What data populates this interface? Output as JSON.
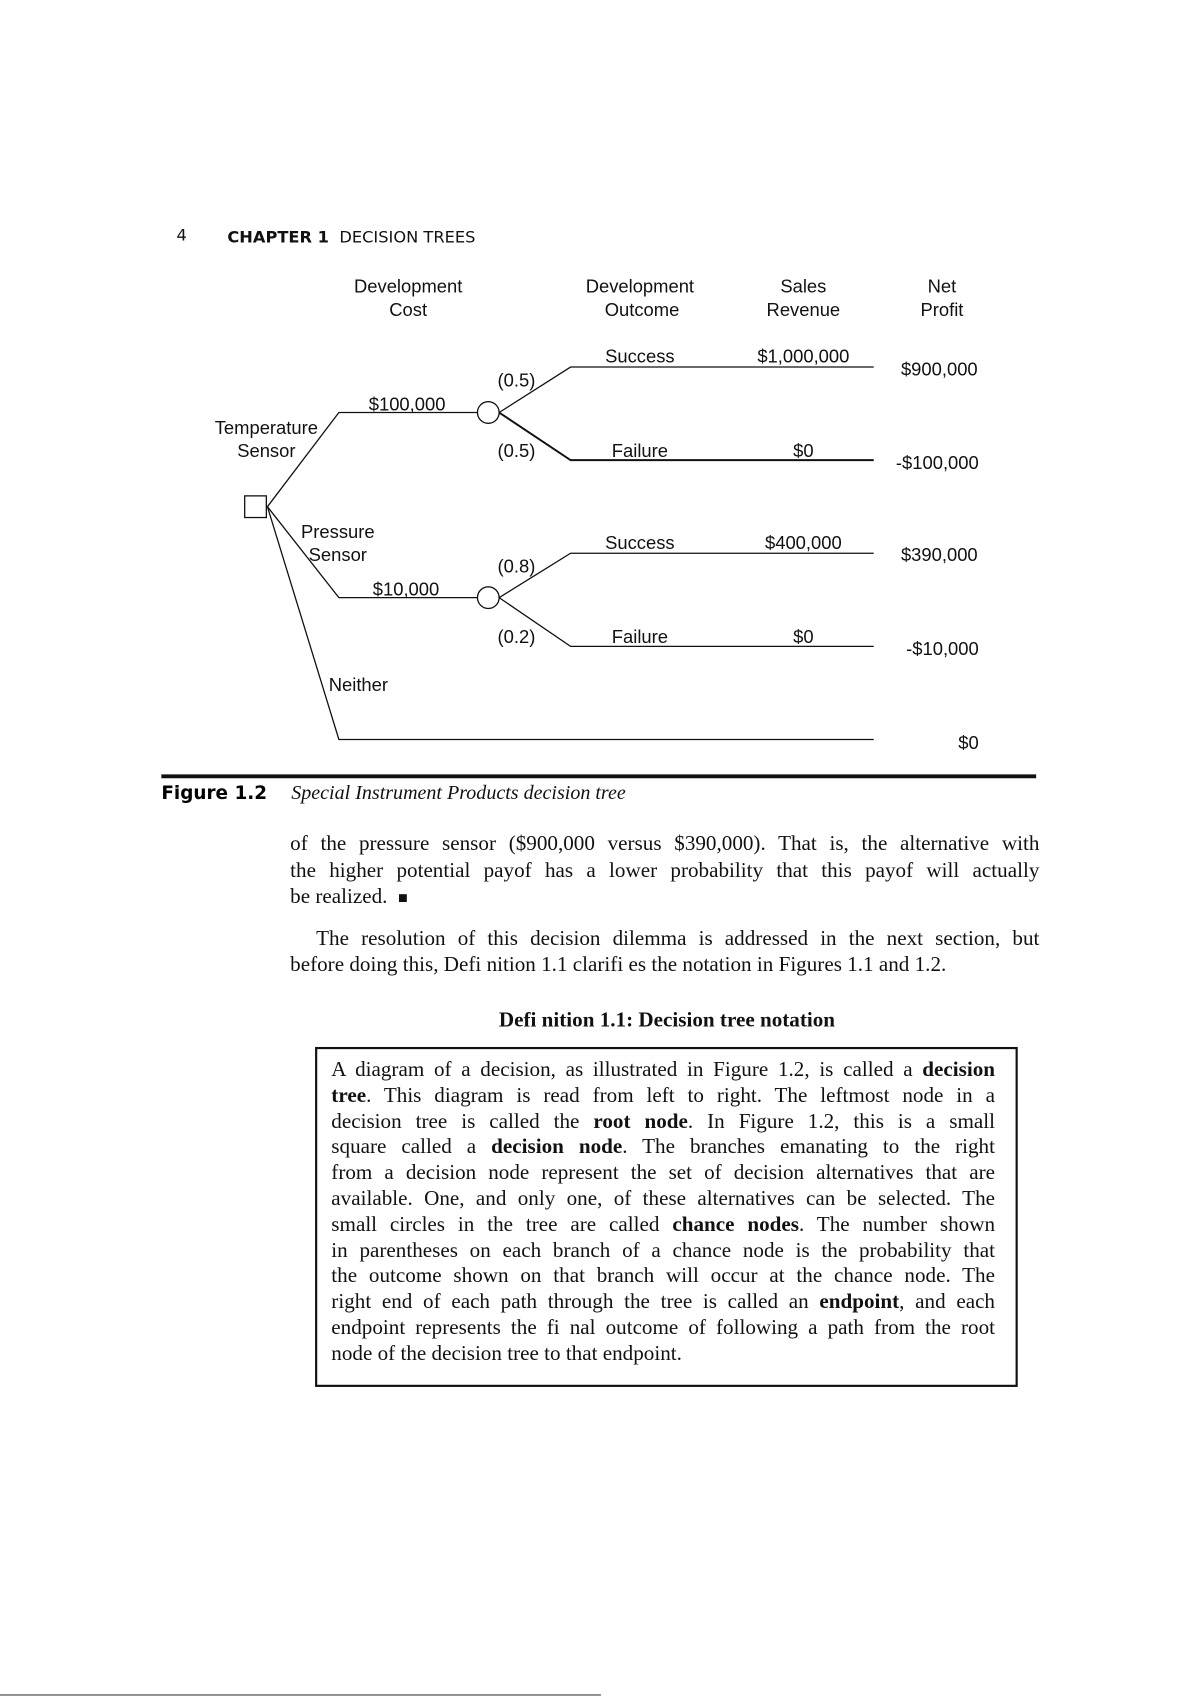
{
  "running_head": {
    "page_number": "4",
    "chapter": "CHAPTER 1",
    "title": "DECISION TREES"
  },
  "diagram": {
    "column_headers": [
      [
        "Development",
        "Cost"
      ],
      [
        "Development",
        "Outcome"
      ],
      [
        "Sales",
        "Revenue"
      ],
      [
        "Net",
        "Profit"
      ]
    ],
    "alternatives": {
      "temperature": [
        "Temperature",
        "Sensor"
      ],
      "pressure": [
        "Pressure",
        "Sensor"
      ],
      "neither": "Neither"
    },
    "costs": {
      "temperature": "$100,000",
      "pressure": "$10,000"
    },
    "probabilities": {
      "t_success": "(0.5)",
      "t_failure": "(0.5)",
      "p_success": "(0.8)",
      "p_failure": "(0.2)"
    },
    "outcomes": {
      "success": "Success",
      "failure": "Failure"
    },
    "revenues": {
      "t_success": "$1,000,000",
      "t_failure": "$0",
      "p_success": "$400,000",
      "p_failure": "$0"
    },
    "profits": {
      "t_success": "$900,000",
      "t_failure": "-$100,000",
      "p_success": "$390,000",
      "p_failure": "-$10,000",
      "neither": "$0"
    }
  },
  "caption": {
    "label": "Figure 1.2",
    "text": "Special Instrument Products decision tree"
  },
  "body": {
    "lines": [
      "of the pressure sensor ($900,000 versus $390,000). That is, the alternative with",
      "the higher potential payof  has a lower probability that this payof  will actually",
      "be realized."
    ],
    "end_mark": "■",
    "para2": [
      "The resolution of this decision dilemma is addressed in the next section, but",
      "before doing this, Defi nition 1.1 clarifi es the notation in Figures 1.1 and 1.2."
    ]
  },
  "definition": {
    "heading": "Defi nition 1.1: Decision tree notation",
    "lines": [
      [
        {
          "t": "A diagram of a decision, as illustrated in Figure 1.2, is called a "
        },
        {
          "t": "decision",
          "b": true
        }
      ],
      [
        {
          "t": "tree",
          "b": true
        },
        {
          "t": ". This diagram is read from left to right. The leftmost node in a"
        }
      ],
      [
        {
          "t": "decision tree is called the "
        },
        {
          "t": "root node",
          "b": true
        },
        {
          "t": ". In Figure 1.2, this is a small"
        }
      ],
      [
        {
          "t": "square called a "
        },
        {
          "t": "decision node",
          "b": true
        },
        {
          "t": ". The branches emanating to the right"
        }
      ],
      [
        {
          "t": "from a decision node represent the set of decision alternatives that are"
        }
      ],
      [
        {
          "t": "available. One, and only one, of these alternatives can be selected. The"
        }
      ],
      [
        {
          "t": "small circles in the tree are called "
        },
        {
          "t": "chance nodes",
          "b": true
        },
        {
          "t": ". The number shown"
        }
      ],
      [
        {
          "t": "in parentheses on each branch of a chance node is the probability that"
        }
      ],
      [
        {
          "t": "the outcome shown on that branch will occur at the chance node. The"
        }
      ],
      [
        {
          "t": "right end of each path through the tree is called an "
        },
        {
          "t": "endpoint",
          "b": true
        },
        {
          "t": ", and each"
        }
      ],
      [
        {
          "t": "endpoint represents the fi nal outcome of following a path from the root"
        }
      ],
      [
        {
          "t": "node of the decision tree to that endpoint."
        }
      ]
    ]
  }
}
